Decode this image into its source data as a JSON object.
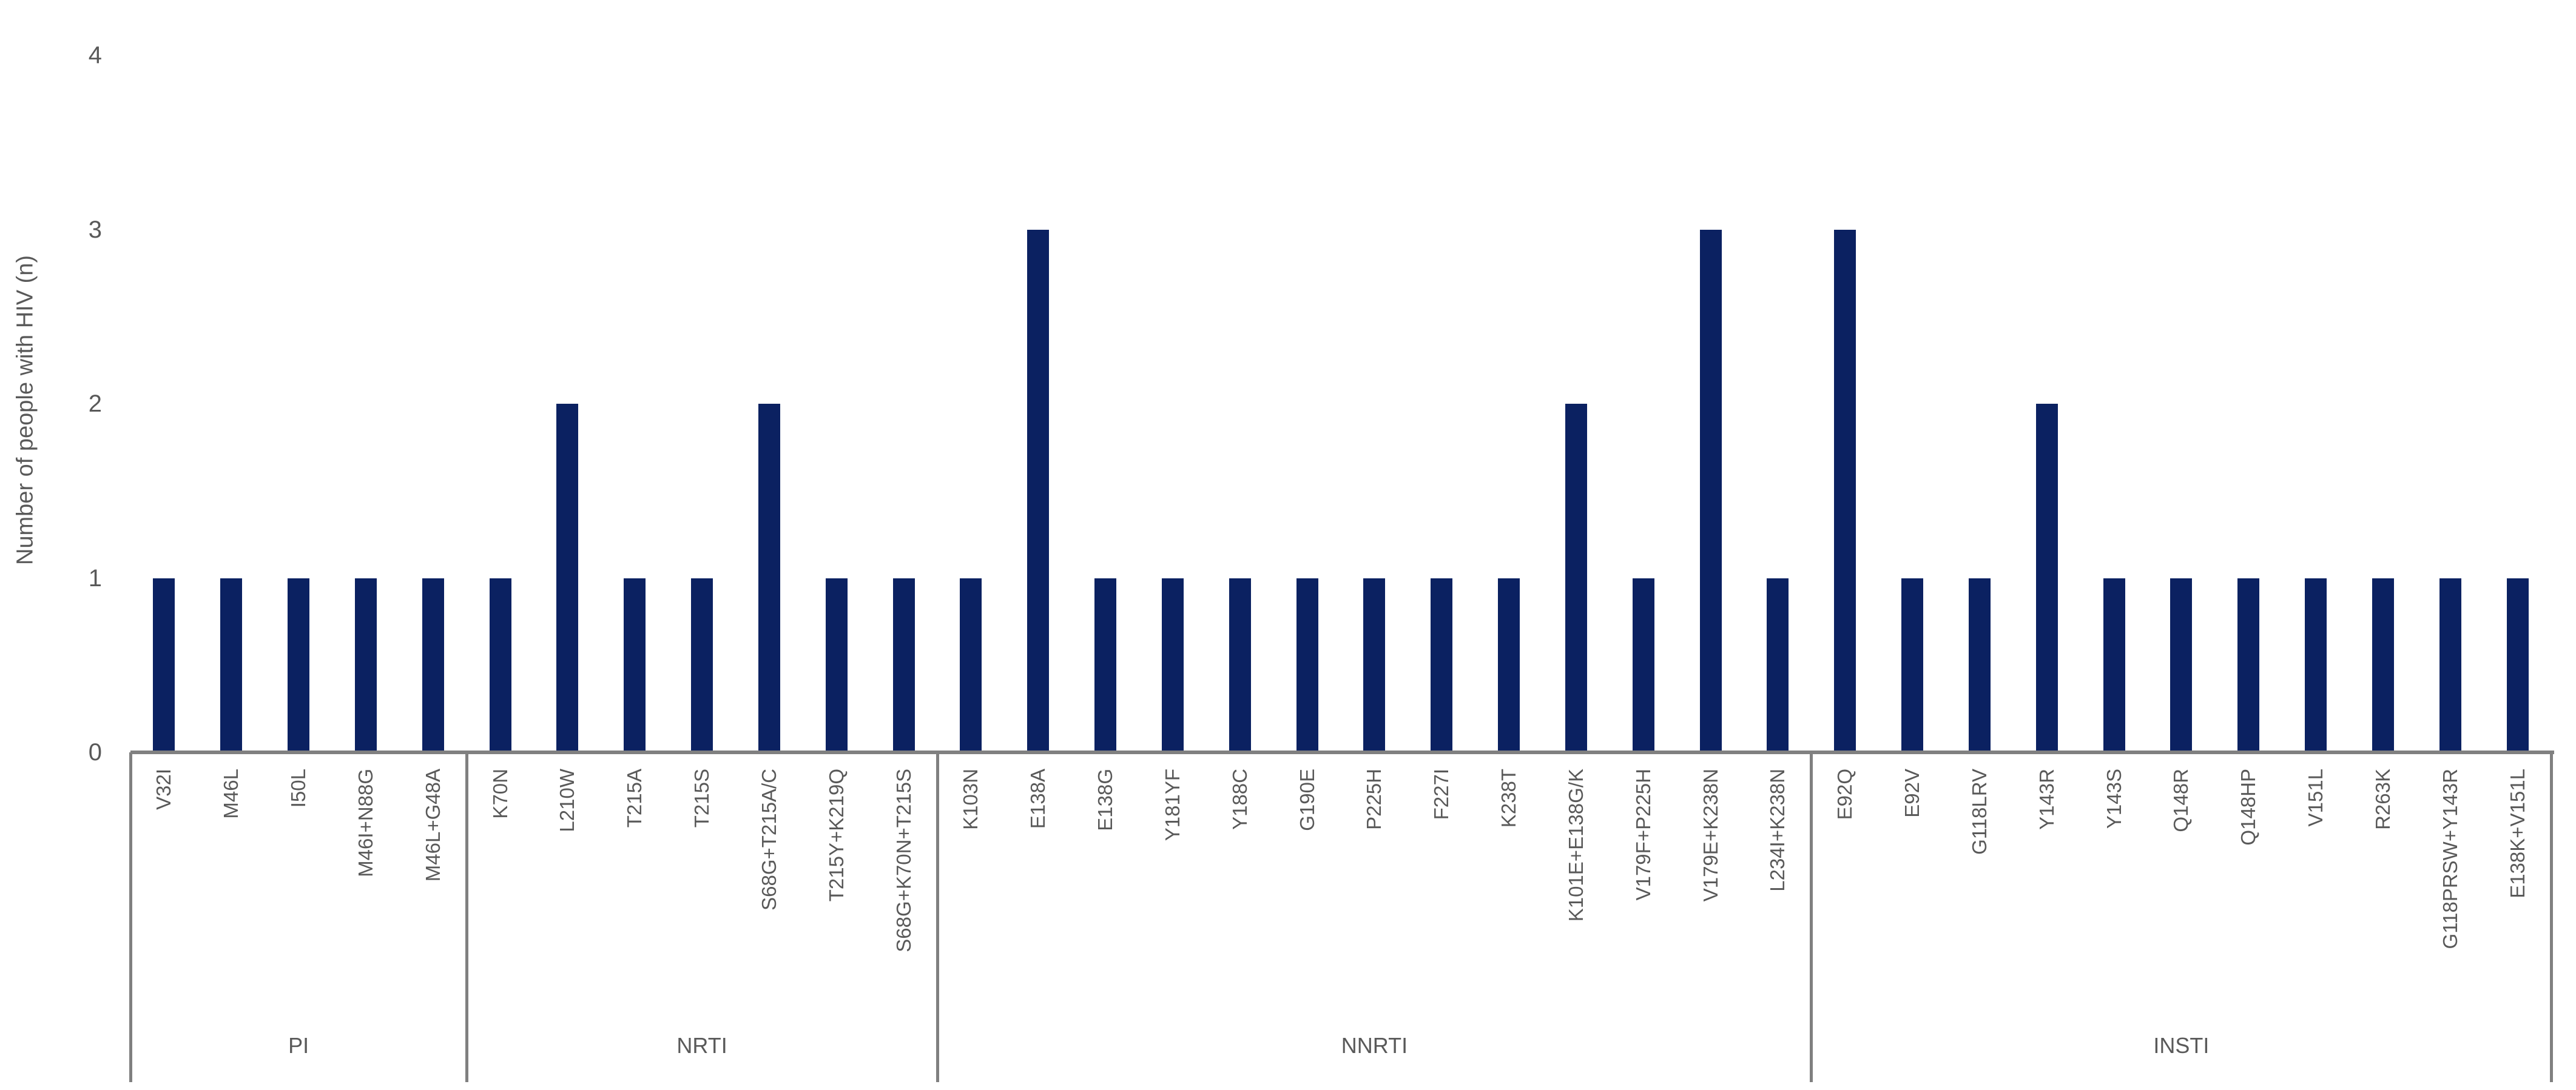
{
  "chart_data": {
    "type": "bar",
    "title": "",
    "xlabel": "",
    "ylabel": "Number of people with HIV (n)",
    "ylim": [
      0,
      4
    ],
    "yticks": [
      0,
      1,
      2,
      3,
      4
    ],
    "grid": false,
    "legend": false,
    "bar_color": "#0b2161",
    "axis_color": "#808080",
    "text_color": "#595959",
    "groups": [
      {
        "label": "PI",
        "categories": [
          "V32I",
          "M46L",
          "I50L",
          "M46I+N88G",
          "M46L+G48A"
        ],
        "values": [
          1,
          1,
          1,
          1,
          1
        ]
      },
      {
        "label": "NRTI",
        "categories": [
          "K70N",
          "L210W",
          "T215A",
          "T215S",
          "S68G+T215A/C",
          "T215Y+K219Q",
          "S68G+K70N+T215S"
        ],
        "values": [
          1,
          2,
          1,
          1,
          2,
          1,
          1
        ]
      },
      {
        "label": "NNRTI",
        "categories": [
          "K103N",
          "E138A",
          "E138G",
          "Y181YF",
          "Y188C",
          "G190E",
          "P225H",
          "F227I",
          "K238T",
          "K101E+E138G/K",
          "V179F+P225H",
          "V179E+K238N",
          "L234I+K238N"
        ],
        "values": [
          1,
          3,
          1,
          1,
          1,
          1,
          1,
          1,
          1,
          2,
          1,
          3,
          1
        ]
      },
      {
        "label": "INSTI",
        "categories": [
          "E92Q",
          "E92V",
          "G118LRV",
          "Y143R",
          "Y143S",
          "Q148R",
          "Q148HP",
          "V151L",
          "R263K",
          "G118PRSW+Y143R",
          "E138K+V151L"
        ],
        "values": [
          3,
          1,
          1,
          2,
          1,
          1,
          1,
          1,
          1,
          1,
          1
        ]
      }
    ]
  }
}
